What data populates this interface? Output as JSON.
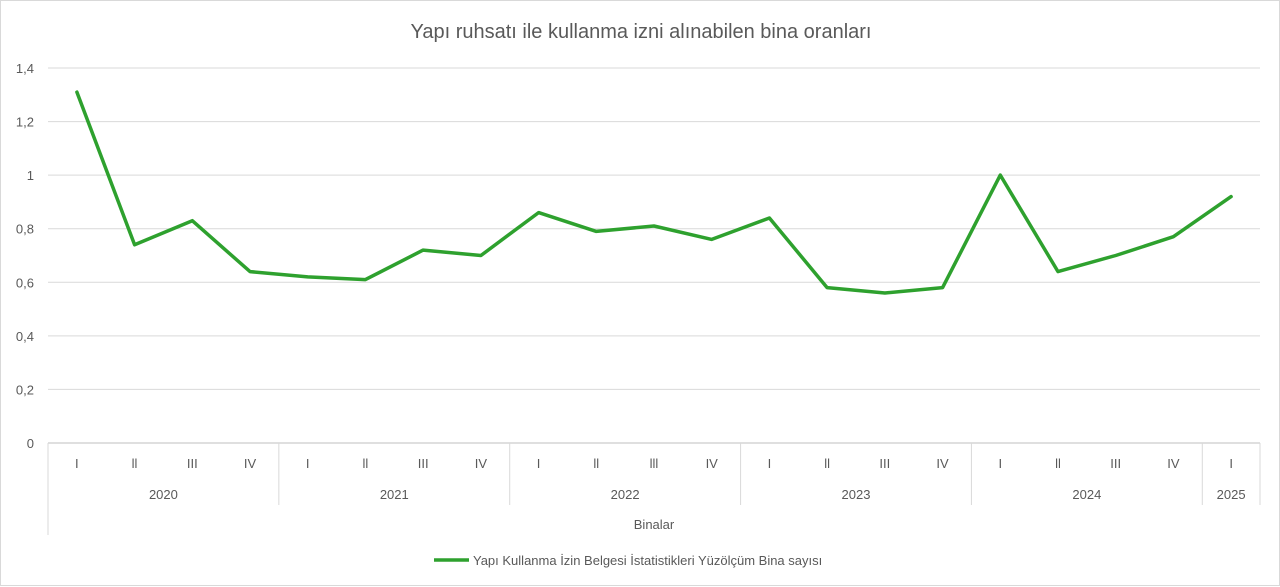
{
  "chart_data": {
    "type": "line",
    "title": "Yapı ruhsatı ile kullanma izni alınabilen bina oranları",
    "xlabel": "Binalar",
    "ylabel": "",
    "ylim": [
      0,
      1.4
    ],
    "yticks": [
      "0",
      "0,2",
      "0,4",
      "0,6",
      "0,8",
      "1",
      "1,2",
      "1,4"
    ],
    "grid": true,
    "legend_position": "bottom",
    "years": [
      {
        "label": "2020",
        "quarters": [
          "I",
          "ll",
          "III",
          "IV"
        ]
      },
      {
        "label": "2021",
        "quarters": [
          "I",
          "ll",
          "III",
          "IV"
        ]
      },
      {
        "label": "2022",
        "quarters": [
          "I",
          "ll",
          "lll",
          "IV"
        ]
      },
      {
        "label": "2023",
        "quarters": [
          "I",
          "ll",
          "III",
          "IV"
        ]
      },
      {
        "label": "2024",
        "quarters": [
          "I",
          "ll",
          "III",
          "IV"
        ]
      },
      {
        "label": "2025",
        "quarters": [
          "I"
        ]
      }
    ],
    "series": [
      {
        "name": "Yapı Kullanma İzin Belgesi İstatistikleri Yüzölçüm Bina sayısı",
        "color": "#2ea12e",
        "values": [
          1.31,
          0.74,
          0.83,
          0.64,
          0.62,
          0.61,
          0.72,
          0.7,
          0.86,
          0.79,
          0.81,
          0.76,
          0.84,
          0.58,
          0.56,
          0.58,
          1.0,
          0.64,
          0.7,
          0.77,
          0.92
        ]
      }
    ]
  }
}
